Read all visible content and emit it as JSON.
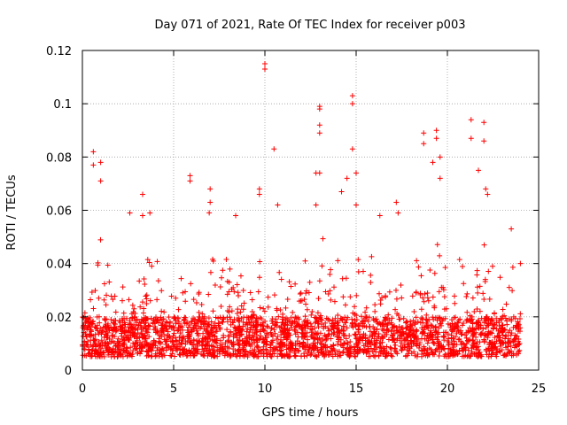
{
  "chart_data": {
    "type": "scatter",
    "title": "Day 071 of 2021, Rate Of TEC Index for receiver p003",
    "xlabel": "GPS time / hours",
    "ylabel": "ROTI / TECUs",
    "xlim": [
      0,
      25
    ],
    "ylim": [
      0,
      0.12
    ],
    "x_ticks": [
      0,
      5,
      10,
      15,
      20,
      25
    ],
    "x_tick_labels": [
      "0",
      "5",
      "10",
      "15",
      "20",
      "25"
    ],
    "y_ticks": [
      0,
      0.02,
      0.04,
      0.06,
      0.08,
      0.1,
      0.12
    ],
    "y_tick_labels": [
      "0",
      "0.02",
      "0.04",
      "0.06",
      "0.08",
      "0.1",
      "0.12"
    ],
    "grid": true,
    "marker": "plus",
    "color": "#ff0000",
    "x_range_data": [
      0,
      24
    ],
    "baseline": {
      "min": 0.005,
      "max": 0.02
    },
    "envelope": {
      "x": [
        0,
        0.5,
        1,
        1.5,
        2,
        2.5,
        3,
        3.5,
        4,
        4.5,
        5,
        5.5,
        6,
        6.5,
        7,
        7.5,
        8,
        8.5,
        9,
        9.5,
        10,
        10.5,
        11,
        11.5,
        12,
        12.5,
        13,
        13.5,
        14,
        14.5,
        15,
        15.5,
        16,
        16.5,
        17,
        17.5,
        18,
        18.5,
        19,
        19.5,
        20,
        20.5,
        21,
        21.5,
        22,
        22.5,
        23,
        23.5,
        24
      ],
      "y": [
        0.025,
        0.045,
        0.05,
        0.035,
        0.03,
        0.04,
        0.035,
        0.045,
        0.04,
        0.045,
        0.035,
        0.04,
        0.04,
        0.035,
        0.06,
        0.04,
        0.045,
        0.04,
        0.035,
        0.04,
        0.045,
        0.05,
        0.045,
        0.035,
        0.04,
        0.05,
        0.05,
        0.045,
        0.04,
        0.045,
        0.05,
        0.04,
        0.04,
        0.045,
        0.045,
        0.035,
        0.04,
        0.045,
        0.055,
        0.06,
        0.045,
        0.04,
        0.045,
        0.05,
        0.05,
        0.04,
        0.035,
        0.04,
        0.03
      ]
    },
    "outliers": [
      {
        "x": 0.6,
        "y": 0.082
      },
      {
        "x": 0.6,
        "y": 0.077
      },
      {
        "x": 1.0,
        "y": 0.078
      },
      {
        "x": 1.0,
        "y": 0.071
      },
      {
        "x": 2.6,
        "y": 0.059
      },
      {
        "x": 3.3,
        "y": 0.066
      },
      {
        "x": 3.3,
        "y": 0.058
      },
      {
        "x": 3.7,
        "y": 0.059
      },
      {
        "x": 5.9,
        "y": 0.073
      },
      {
        "x": 5.9,
        "y": 0.071
      },
      {
        "x": 7.0,
        "y": 0.068
      },
      {
        "x": 7.0,
        "y": 0.063
      },
      {
        "x": 8.4,
        "y": 0.058
      },
      {
        "x": 9.7,
        "y": 0.068
      },
      {
        "x": 9.7,
        "y": 0.066
      },
      {
        "x": 10.0,
        "y": 0.115
      },
      {
        "x": 10.0,
        "y": 0.113
      },
      {
        "x": 10.5,
        "y": 0.083
      },
      {
        "x": 10.7,
        "y": 0.062
      },
      {
        "x": 12.8,
        "y": 0.074
      },
      {
        "x": 12.8,
        "y": 0.062
      },
      {
        "x": 13.0,
        "y": 0.099
      },
      {
        "x": 13.0,
        "y": 0.098
      },
      {
        "x": 13.0,
        "y": 0.092
      },
      {
        "x": 13.0,
        "y": 0.089
      },
      {
        "x": 13.0,
        "y": 0.074
      },
      {
        "x": 14.2,
        "y": 0.067
      },
      {
        "x": 14.5,
        "y": 0.072
      },
      {
        "x": 14.8,
        "y": 0.103
      },
      {
        "x": 14.8,
        "y": 0.1
      },
      {
        "x": 14.8,
        "y": 0.083
      },
      {
        "x": 15.0,
        "y": 0.074
      },
      {
        "x": 15.0,
        "y": 0.062
      },
      {
        "x": 16.3,
        "y": 0.058
      },
      {
        "x": 17.2,
        "y": 0.063
      },
      {
        "x": 17.3,
        "y": 0.059
      },
      {
        "x": 18.7,
        "y": 0.089
      },
      {
        "x": 18.7,
        "y": 0.085
      },
      {
        "x": 19.2,
        "y": 0.078
      },
      {
        "x": 19.4,
        "y": 0.09
      },
      {
        "x": 19.4,
        "y": 0.087
      },
      {
        "x": 19.6,
        "y": 0.08
      },
      {
        "x": 19.6,
        "y": 0.072
      },
      {
        "x": 21.3,
        "y": 0.094
      },
      {
        "x": 21.3,
        "y": 0.087
      },
      {
        "x": 21.7,
        "y": 0.075
      },
      {
        "x": 22.0,
        "y": 0.093
      },
      {
        "x": 22.0,
        "y": 0.086
      },
      {
        "x": 22.1,
        "y": 0.068
      },
      {
        "x": 22.2,
        "y": 0.066
      },
      {
        "x": 23.5,
        "y": 0.053
      },
      {
        "x": 24.0,
        "y": 0.04
      }
    ]
  }
}
